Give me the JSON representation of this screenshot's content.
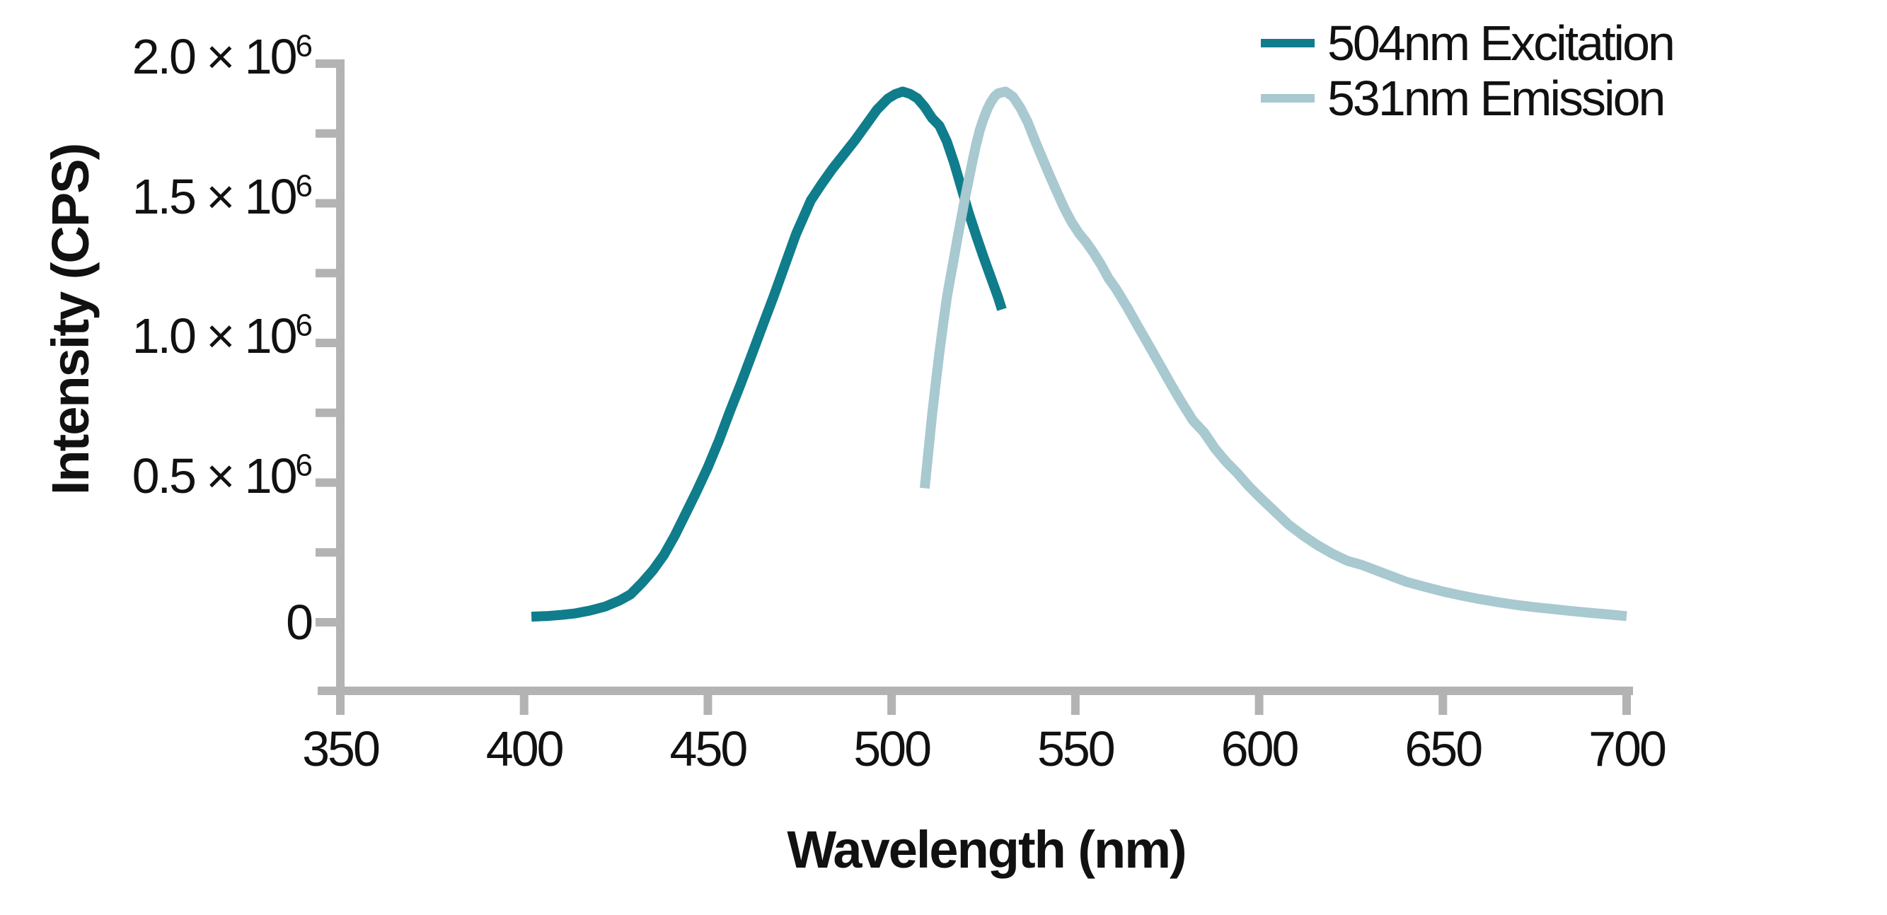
{
  "figure": {
    "background": "#ffffff"
  },
  "colors": {
    "axis": "#b3b3b3",
    "text": "#111111",
    "excitation": "#0f7d8b",
    "emission": "#a7c9cf"
  },
  "axes": {
    "x": {
      "label": "Wavelength (nm)",
      "min": 350,
      "max": 700,
      "ticks": [
        350,
        400,
        450,
        500,
        550,
        600,
        650,
        700
      ]
    },
    "y": {
      "label": "Intensity (CPS)",
      "min": 0,
      "max": 2000000,
      "ticks": [
        {
          "value": 2000000,
          "text": "2.0 × 10",
          "sup": "6"
        },
        {
          "value": 1500000,
          "text": "1.5 × 10",
          "sup": "6"
        },
        {
          "value": 1000000,
          "text": "1.0 × 10",
          "sup": "6"
        },
        {
          "value": 500000,
          "text": "0.5 × 10",
          "sup": "6"
        },
        {
          "value": 0,
          "text": "0",
          "sup": ""
        }
      ],
      "minor_ticks": [
        250000,
        750000,
        1250000,
        1750000
      ]
    }
  },
  "legend": {
    "entries": [
      {
        "label": "504nm Excitation",
        "series": "excitation"
      },
      {
        "label": "531nm Emission",
        "series": "emission"
      }
    ]
  },
  "chart_data": {
    "type": "line",
    "title": "",
    "xlabel": "Wavelength (nm)",
    "ylabel": "Intensity (CPS)",
    "xlim": [
      350,
      700
    ],
    "ylim": [
      0,
      2000000
    ],
    "grid": false,
    "legend_position": "top-right",
    "series": [
      {
        "name": "504nm Excitation",
        "color_key": "excitation",
        "peak_nm": 504,
        "peak_intensity": 1900000,
        "points": [
          [
            402,
            20000
          ],
          [
            406,
            22000
          ],
          [
            410,
            26000
          ],
          [
            414,
            32000
          ],
          [
            418,
            42000
          ],
          [
            422,
            56000
          ],
          [
            426,
            78000
          ],
          [
            429,
            100000
          ],
          [
            432,
            140000
          ],
          [
            435,
            185000
          ],
          [
            438,
            240000
          ],
          [
            441,
            310000
          ],
          [
            444,
            390000
          ],
          [
            447,
            470000
          ],
          [
            450,
            555000
          ],
          [
            453,
            650000
          ],
          [
            456,
            755000
          ],
          [
            459,
            855000
          ],
          [
            462,
            960000
          ],
          [
            465,
            1065000
          ],
          [
            468,
            1170000
          ],
          [
            471,
            1280000
          ],
          [
            474,
            1390000
          ],
          [
            476,
            1450000
          ],
          [
            478,
            1510000
          ],
          [
            481,
            1570000
          ],
          [
            484,
            1625000
          ],
          [
            487,
            1675000
          ],
          [
            490,
            1725000
          ],
          [
            493,
            1780000
          ],
          [
            496,
            1835000
          ],
          [
            499,
            1875000
          ],
          [
            501,
            1891000
          ],
          [
            503,
            1900000
          ],
          [
            505,
            1892000
          ],
          [
            507,
            1876000
          ],
          [
            509,
            1845000
          ],
          [
            511,
            1805000
          ],
          [
            513,
            1778000
          ],
          [
            515,
            1722000
          ],
          [
            517,
            1645000
          ],
          [
            519,
            1555000
          ],
          [
            521,
            1465000
          ],
          [
            523,
            1385000
          ],
          [
            525,
            1308000
          ],
          [
            527,
            1235000
          ],
          [
            529,
            1162000
          ],
          [
            530,
            1120000
          ]
        ]
      },
      {
        "name": "531nm Emission",
        "color_key": "emission",
        "peak_nm": 531,
        "peak_intensity": 1900000,
        "points": [
          [
            509,
            480000
          ],
          [
            510,
            610000
          ],
          [
            511,
            740000
          ],
          [
            512,
            855000
          ],
          [
            513,
            965000
          ],
          [
            514,
            1065000
          ],
          [
            515,
            1160000
          ],
          [
            516,
            1235000
          ],
          [
            517,
            1305000
          ],
          [
            518,
            1380000
          ],
          [
            519,
            1450000
          ],
          [
            520,
            1520000
          ],
          [
            521,
            1585000
          ],
          [
            522,
            1650000
          ],
          [
            523,
            1710000
          ],
          [
            524,
            1762000
          ],
          [
            525,
            1802000
          ],
          [
            526,
            1836000
          ],
          [
            527,
            1862000
          ],
          [
            528,
            1882000
          ],
          [
            529,
            1894000
          ],
          [
            531,
            1900000
          ],
          [
            533,
            1882000
          ],
          [
            535,
            1843000
          ],
          [
            537,
            1792000
          ],
          [
            539,
            1725000
          ],
          [
            541,
            1662000
          ],
          [
            543,
            1600000
          ],
          [
            545,
            1540000
          ],
          [
            547,
            1482000
          ],
          [
            549,
            1432000
          ],
          [
            551,
            1392000
          ],
          [
            553,
            1360000
          ],
          [
            555,
            1322000
          ],
          [
            557,
            1280000
          ],
          [
            559,
            1232000
          ],
          [
            561,
            1195000
          ],
          [
            564,
            1130000
          ],
          [
            567,
            1060000
          ],
          [
            570,
            992000
          ],
          [
            573,
            922000
          ],
          [
            576,
            852000
          ],
          [
            579,
            785000
          ],
          [
            582,
            722000
          ],
          [
            585,
            680000
          ],
          [
            588,
            622000
          ],
          [
            591,
            575000
          ],
          [
            594,
            535000
          ],
          [
            597,
            490000
          ],
          [
            600,
            450000
          ],
          [
            604,
            400000
          ],
          [
            608,
            350000
          ],
          [
            612,
            310000
          ],
          [
            616,
            275000
          ],
          [
            620,
            245000
          ],
          [
            624,
            220000
          ],
          [
            628,
            205000
          ],
          [
            632,
            185000
          ],
          [
            636,
            165000
          ],
          [
            640,
            145000
          ],
          [
            645,
            127000
          ],
          [
            650,
            110000
          ],
          [
            655,
            96000
          ],
          [
            660,
            83000
          ],
          [
            665,
            72000
          ],
          [
            670,
            62000
          ],
          [
            675,
            54000
          ],
          [
            680,
            47000
          ],
          [
            685,
            40000
          ],
          [
            690,
            34000
          ],
          [
            695,
            28000
          ],
          [
            700,
            22000
          ]
        ]
      }
    ]
  }
}
